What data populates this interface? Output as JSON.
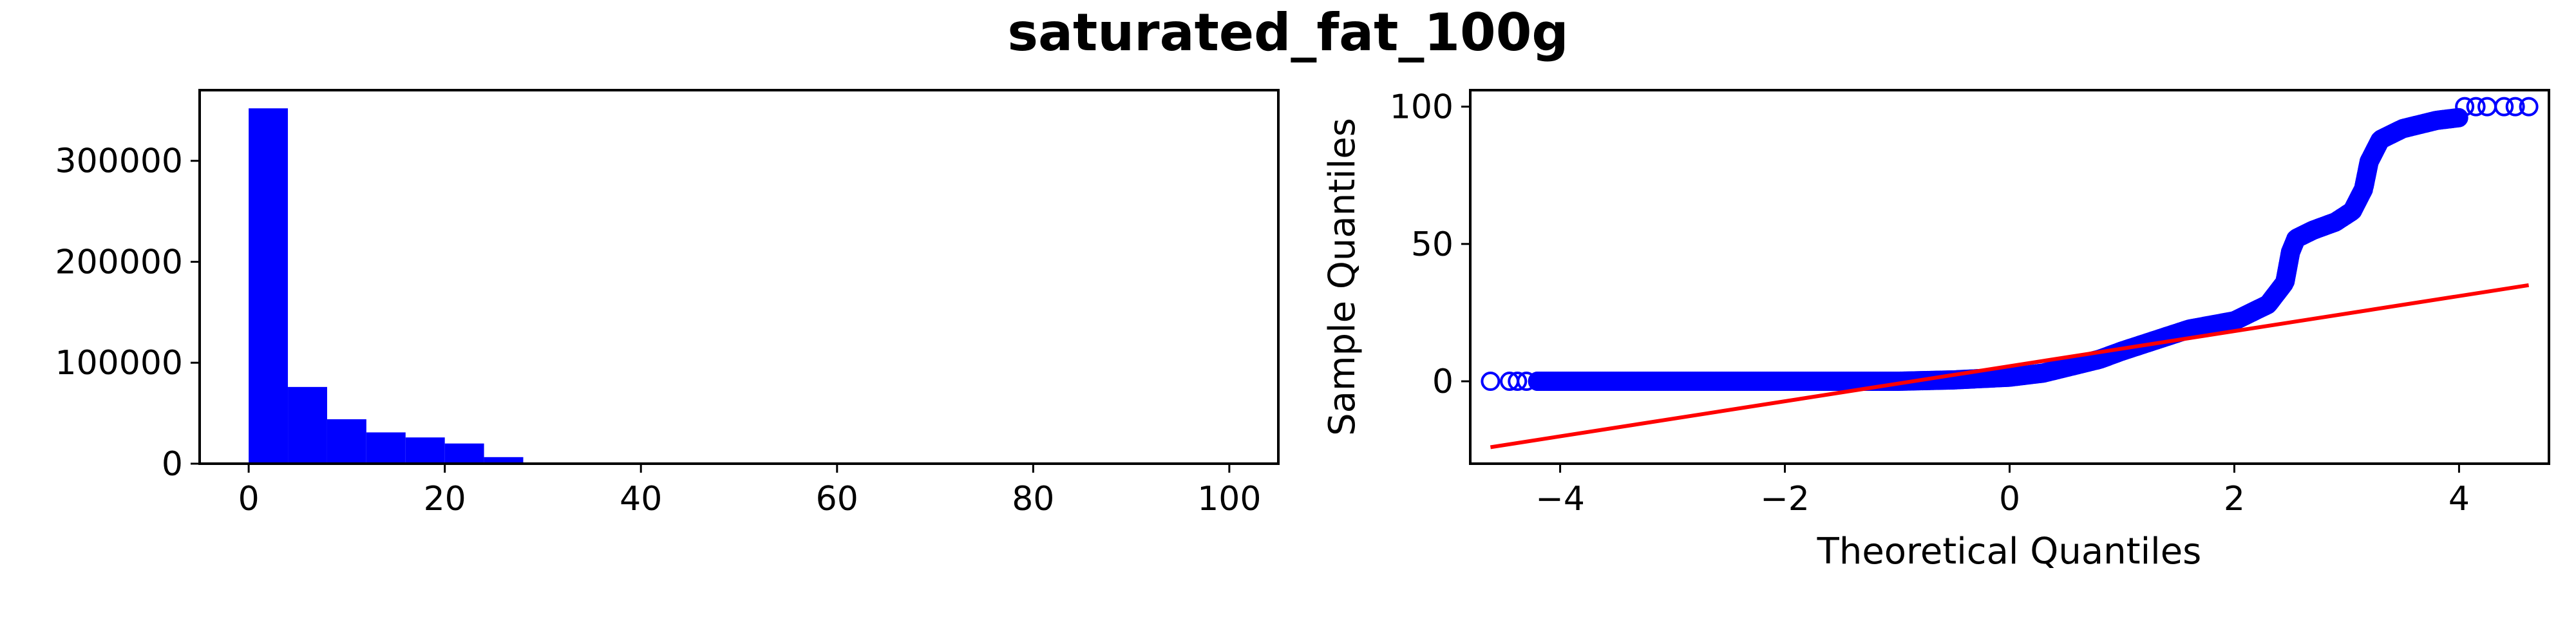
{
  "figure": {
    "suptitle": "saturated_fat_100g"
  },
  "chart_data": [
    {
      "type": "bar",
      "name": "histogram",
      "bin_edges": [
        0,
        4,
        8,
        12,
        16,
        20,
        24,
        28,
        32,
        36,
        40,
        44,
        48,
        52,
        56,
        60,
        64,
        68,
        72,
        76,
        80,
        84,
        88,
        92,
        96,
        100
      ],
      "values": [
        352000,
        76000,
        44000,
        31000,
        26000,
        20000,
        6500,
        1200,
        400,
        250,
        150,
        100,
        80,
        60,
        50,
        40,
        30,
        30,
        20,
        20,
        20,
        20,
        20,
        20,
        100
      ],
      "color": "#0000ff",
      "xlim": [
        -5,
        105
      ],
      "ylim": [
        0,
        370000
      ],
      "xticks": [
        0,
        20,
        40,
        60,
        80,
        100
      ],
      "yticks": [
        0,
        100000,
        200000,
        300000
      ],
      "xlabel": "",
      "ylabel": ""
    },
    {
      "type": "scatter",
      "name": "qq-plot",
      "xlabel": "Theoretical Quantiles",
      "ylabel": "Sample Quantiles",
      "xlim": [
        -4.8,
        4.8
      ],
      "ylim": [
        -30,
        106
      ],
      "xticks": [
        -4,
        -2,
        0,
        2,
        4
      ],
      "yticks": [
        0,
        50,
        100
      ],
      "marker_color": "#0000ff",
      "line_color": "#ff0000",
      "sample_curve": {
        "x": [
          -4.62,
          -4.45,
          -4.38,
          -4.3,
          -4.2,
          -4.0,
          -3.5,
          -3.0,
          -2.5,
          -2.0,
          -1.5,
          -1.0,
          -0.5,
          0.0,
          0.3,
          0.5,
          0.8,
          1.0,
          1.3,
          1.6,
          2.0,
          2.3,
          2.45,
          2.5,
          2.55,
          2.7,
          2.9,
          3.05,
          3.15,
          3.2,
          3.3,
          3.5,
          3.8,
          4.0,
          4.05,
          4.2,
          4.4,
          4.5,
          4.62
        ],
        "y": [
          0,
          0,
          0,
          0,
          0,
          0,
          0,
          0,
          0,
          0,
          0,
          0,
          0.5,
          1.5,
          3,
          5,
          8,
          11,
          15,
          19,
          22,
          28,
          36,
          47,
          52,
          55,
          58,
          62,
          70,
          80,
          88,
          92,
          95,
          96,
          100,
          100,
          100,
          100,
          100
        ]
      },
      "outlier_points": {
        "x": [
          -4.62,
          -4.45,
          -4.38,
          -4.3,
          -4.2,
          4.05,
          4.15,
          4.25,
          4.4,
          4.5,
          4.62
        ],
        "y": [
          0,
          0,
          0,
          0,
          0,
          100,
          100,
          100,
          100,
          100,
          100
        ]
      },
      "reference_line": {
        "x": [
          -4.62,
          4.62
        ],
        "y": [
          -24,
          35
        ]
      }
    }
  ]
}
